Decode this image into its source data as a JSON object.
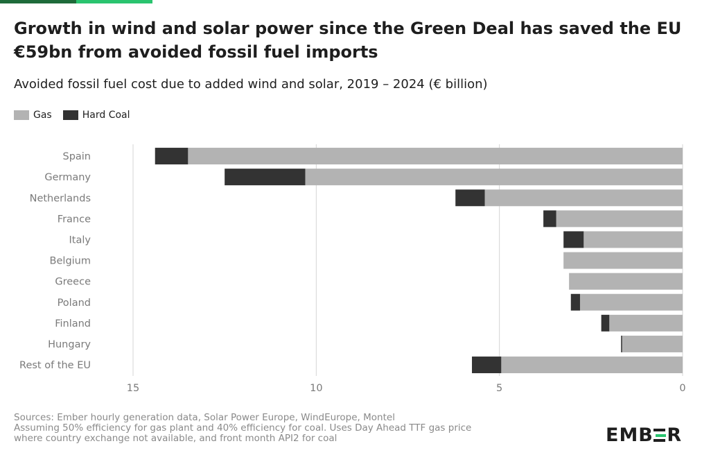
{
  "title": "Growth in wind and solar power since the Green Deal has saved the EU €59bn from avoided fossil fuel imports",
  "subtitle": "Avoided fossil fuel cost due to added wind and solar, 2019 – 2024 (€ billion)",
  "legend": [
    {
      "label": "Gas",
      "color": "#b3b3b3"
    },
    {
      "label": "Hard Coal",
      "color": "#333333"
    }
  ],
  "chart_data": {
    "type": "bar",
    "orientation": "horizontal",
    "stacked": true,
    "x_direction": "reversed",
    "categories": [
      "Spain",
      "Germany",
      "Netherlands",
      "France",
      "Italy",
      "Belgium",
      "Greece",
      "Poland",
      "Finland",
      "Hungary",
      "Rest of the EU"
    ],
    "series": [
      {
        "name": "Gas",
        "color": "#b3b3b3",
        "values": [
          13.5,
          10.3,
          5.4,
          3.45,
          2.7,
          3.25,
          3.1,
          2.8,
          2.0,
          1.65,
          4.95
        ]
      },
      {
        "name": "Hard Coal",
        "color": "#333333",
        "values": [
          0.9,
          2.2,
          0.8,
          0.35,
          0.55,
          0.0,
          0.0,
          0.25,
          0.22,
          0.03,
          0.8
        ]
      }
    ],
    "xlim": [
      0,
      15
    ],
    "xticks": [
      "15",
      "10",
      "5",
      "0"
    ],
    "xtick_values": [
      15,
      10,
      5,
      0
    ],
    "grid": true,
    "legend_position": "top-left"
  },
  "footer": {
    "sources": "Sources: Ember hourly generation data, Solar Power Europe, WindEurope, Montel",
    "note_line1": "Assuming 50% efficiency for gas plant and 40% efficiency for coal. Uses Day Ahead TTF gas price",
    "note_line2": "where country exchange not available, and front month API2 for coal"
  },
  "brand": {
    "logo_part1": "EMB",
    "logo_part2": "R",
    "accent_color": "#2ac46f",
    "top_rule_colors": [
      "#1e6b3a",
      "#2ac46f"
    ]
  }
}
